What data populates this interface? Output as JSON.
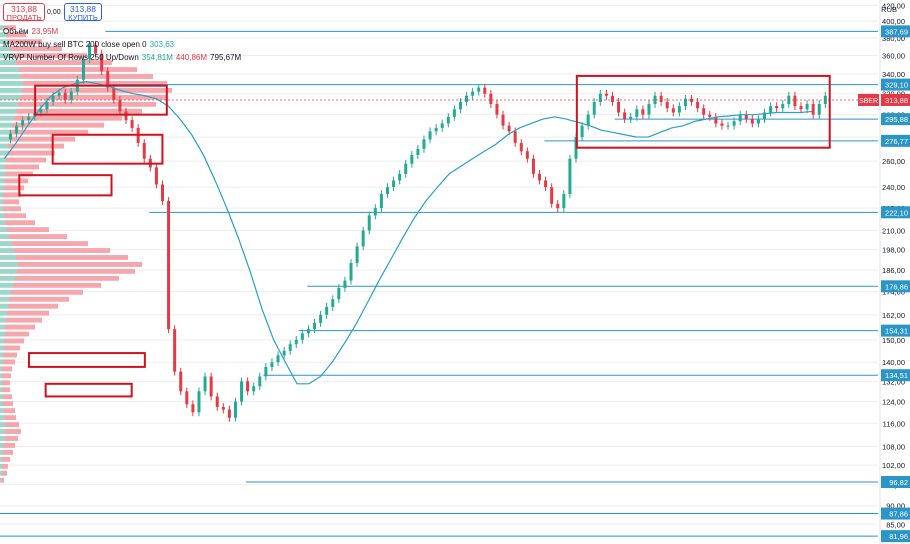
{
  "header": {
    "sell": {
      "price": "313,88",
      "label": "ПРОДАТЬ"
    },
    "spread": "0,00",
    "buy": {
      "price": "313,88",
      "label": "КУПИТЬ"
    },
    "currency": "RUB"
  },
  "legends": {
    "volume": {
      "name": "Объём",
      "value": "23,95M",
      "value_color": "#e53946"
    },
    "ma": {
      "name": "MA200W buy sell BTC 200 close open 0",
      "value": "303,63",
      "value_color": "#26a2c6"
    },
    "vrvp": {
      "name": "VRVP Number Of Rows 250 Up/Down",
      "values": [
        {
          "text": "354,81M",
          "color": "#22ab94"
        },
        {
          "text": "440,86M",
          "color": "#e53946"
        },
        {
          "text": "795,67M",
          "color": "#131722"
        }
      ]
    }
  },
  "chart_data": {
    "type": "line",
    "ticker": "SBER",
    "ylim": [
      80,
      427
    ],
    "y_scale": "log",
    "y_ticks": [
      420,
      400,
      380,
      360,
      340,
      320,
      300,
      280,
      260,
      240,
      225,
      210,
      198,
      186,
      174,
      162,
      150,
      140,
      132,
      124,
      116,
      108,
      102,
      96,
      90,
      85
    ],
    "y_tick_labels": [
      "420,00",
      "400,00",
      "380,00",
      "360,00",
      "340,00",
      "320,00",
      "300,00",
      "280,00",
      "260,00",
      "240,00",
      "225,00",
      "210,00",
      "198,00",
      "186,00",
      "174,00",
      "162,00",
      "150,00",
      "140,00",
      "132,00",
      "124,00",
      "116,00",
      "108,00",
      "102,00",
      "96,00",
      "90,00",
      "85,00"
    ],
    "last_price": 313.88,
    "last_price_label": "313,88",
    "price_series": {
      "name": "SBER",
      "values": [
        278,
        283,
        290,
        295,
        298,
        302,
        305,
        312,
        318,
        321,
        314,
        322,
        334,
        356,
        372,
        362,
        343,
        326,
        314,
        303,
        295,
        288,
        275,
        262,
        255,
        242,
        230,
        155,
        136,
        128,
        123,
        120,
        128,
        134,
        126,
        122,
        121,
        118,
        124,
        132,
        128,
        130,
        134,
        138,
        140,
        143,
        145,
        148,
        150,
        153,
        155,
        158,
        162,
        166,
        170,
        176,
        180,
        190,
        200,
        210,
        220,
        225,
        235,
        240,
        245,
        250,
        258,
        265,
        270,
        278,
        285,
        288,
        292,
        298,
        305,
        312,
        318,
        322,
        326,
        320,
        310,
        300,
        290,
        285,
        275,
        268,
        262,
        250,
        245,
        240,
        228,
        225,
        235,
        262,
        280,
        290,
        300,
        312,
        320,
        318,
        312,
        302,
        296,
        298,
        305,
        300,
        310,
        318,
        312,
        306,
        302,
        308,
        315,
        312,
        306,
        300,
        298,
        292,
        290,
        290,
        294,
        300,
        296,
        292,
        296,
        302,
        308,
        306,
        310,
        318,
        308,
        305,
        310,
        300,
        310,
        318
      ],
      "value_color_up": "#22ab94",
      "value_color_down": "#e53946"
    },
    "ma_series": {
      "name": "MA200W",
      "values": [
        262,
        275,
        290,
        305,
        318,
        326,
        330,
        332,
        330,
        327,
        323,
        320,
        318,
        315,
        308,
        296,
        282,
        265,
        245,
        225,
        205,
        185,
        165,
        150,
        140,
        131,
        131,
        134,
        140,
        148,
        157,
        168,
        180,
        192,
        205,
        218,
        230,
        240,
        250,
        256,
        262,
        268,
        274,
        282,
        288,
        292,
        296,
        298,
        296,
        293,
        290,
        286,
        284,
        282,
        280,
        280,
        284,
        288,
        290,
        294,
        296,
        298,
        299,
        300,
        300,
        301,
        302,
        302,
        302,
        303
      ]
    },
    "volume_profile": {
      "rows_up": [
        4,
        6,
        8,
        10,
        13,
        16,
        19,
        21,
        23,
        22,
        20,
        18,
        16,
        14,
        12,
        10,
        9,
        8,
        7,
        6,
        5,
        5,
        4,
        4,
        3,
        3,
        3,
        4,
        5,
        7,
        9,
        12,
        14,
        16,
        18,
        17,
        15,
        13,
        11,
        9,
        8,
        7,
        6,
        5,
        5,
        4,
        4,
        3,
        3,
        2,
        2,
        2,
        2,
        3,
        3,
        4,
        4,
        5,
        5,
        4,
        3,
        3,
        2,
        2,
        2,
        1
      ],
      "rows_down": [
        12,
        20,
        34,
        52,
        74,
        96,
        118,
        132,
        144,
        150,
        146,
        138,
        126,
        108,
        92,
        78,
        66,
        56,
        48,
        40,
        34,
        28,
        24,
        20,
        18,
        16,
        18,
        22,
        30,
        42,
        58,
        76,
        96,
        112,
        124,
        118,
        104,
        88,
        72,
        60,
        50,
        42,
        36,
        30,
        24,
        20,
        16,
        14,
        12,
        10,
        9,
        8,
        8,
        9,
        10,
        11,
        12,
        14,
        16,
        14,
        12,
        10,
        8,
        6,
        5,
        3
      ]
    },
    "horizontal_levels": [
      {
        "value": 387.69,
        "label": "387,69",
        "start_x_frac": 0.12
      },
      {
        "value": 329.1,
        "label": "329,10",
        "start_x_frac": 0.12
      },
      {
        "value": 295.88,
        "label": "295,88",
        "start_x_frac": 0.7
      },
      {
        "value": 276.77,
        "label": "276,77",
        "start_x_frac": 0.62
      },
      {
        "value": 222.1,
        "label": "222,10",
        "start_x_frac": 0.17
      },
      {
        "value": 176.86,
        "label": "176,86",
        "start_x_frac": 0.35
      },
      {
        "value": 154.31,
        "label": "154,31",
        "start_x_frac": 0.34
      },
      {
        "value": 134.51,
        "label": "134,51",
        "start_x_frac": 0.3
      },
      {
        "value": 96.82,
        "label": "96,82",
        "start_x_frac": 0.28
      },
      {
        "value": 87.86,
        "label": "87,86",
        "start_x_frac": 0.0
      },
      {
        "value": 81.96,
        "label": "81,96",
        "start_x_frac": 0.0
      }
    ],
    "annotation_boxes": [
      {
        "x_frac": [
          0.04,
          0.19
        ],
        "y_values": [
          300,
          328
        ]
      },
      {
        "x_frac": [
          0.06,
          0.185
        ],
        "y_values": [
          258,
          282
        ]
      },
      {
        "x_frac": [
          0.022,
          0.127
        ],
        "y_values": [
          234,
          249
        ]
      },
      {
        "x_frac": [
          0.033,
          0.165
        ],
        "y_values": [
          138,
          144
        ]
      },
      {
        "x_frac": [
          0.052,
          0.15
        ],
        "y_values": [
          126,
          131
        ]
      },
      {
        "x_frac": [
          0.657,
          0.945
        ],
        "y_values": [
          271,
          338
        ]
      }
    ],
    "colors": {
      "accent_red": "#e53946",
      "ma": "#26a2c6",
      "level": "#2b95c8",
      "grid": "#eeeeee",
      "up": "#22ab94",
      "down": "#e53946",
      "volume_up": "#9ed6c9",
      "volume_down": "#f4a8ae"
    }
  }
}
